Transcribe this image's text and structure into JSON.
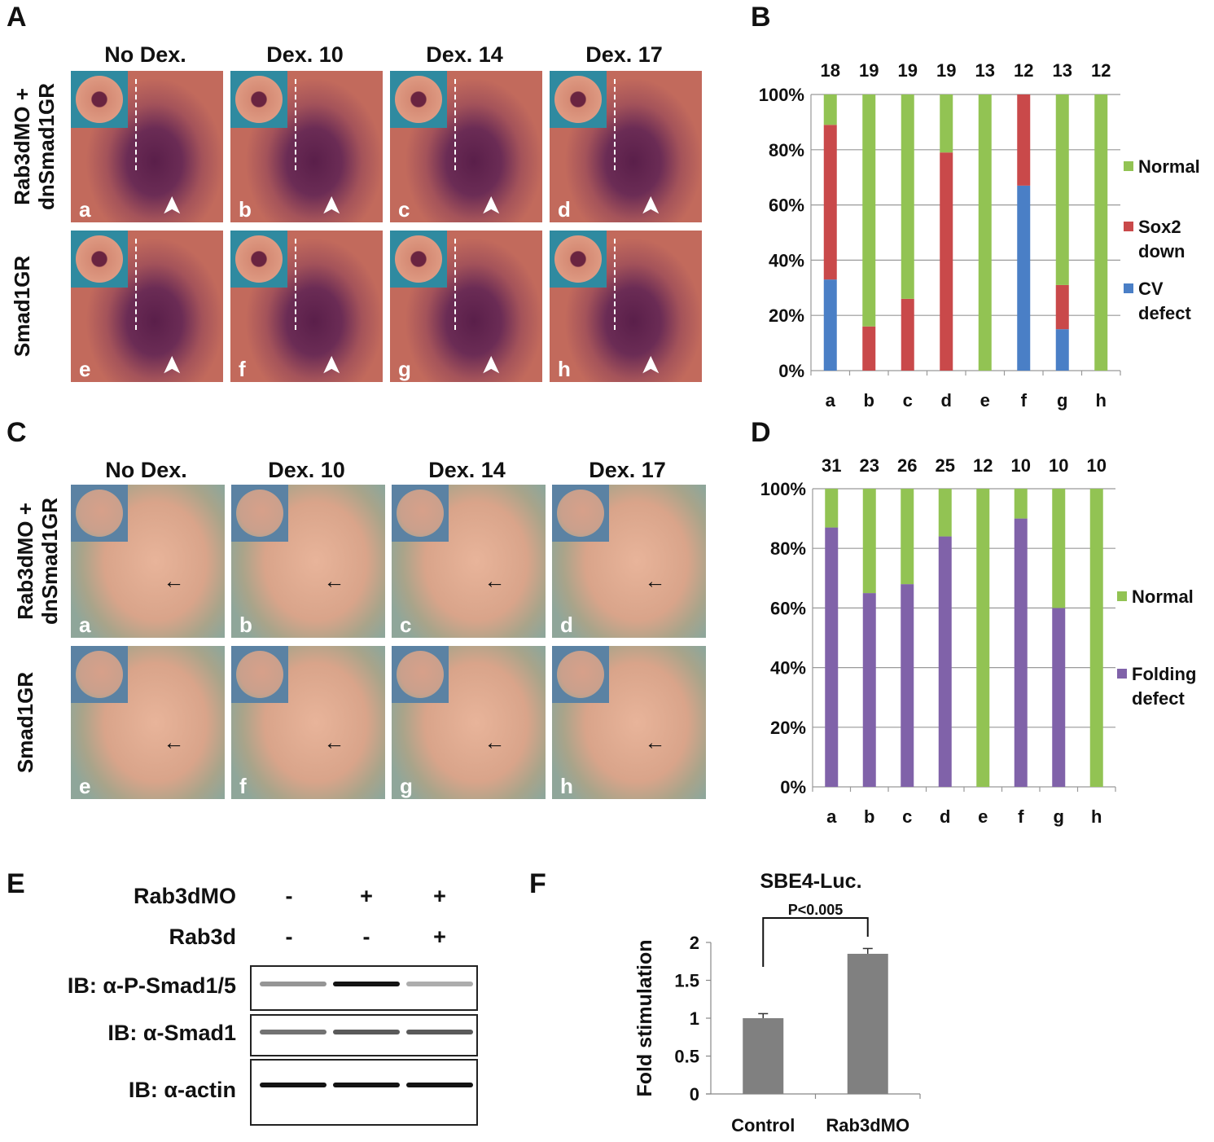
{
  "panels": {
    "A": {
      "letter": "A",
      "column_titles": [
        "No Dex.",
        "Dex. 10",
        "Dex. 14",
        "Dex. 17"
      ],
      "row_labels": [
        "Rab3dMO +\ndnSmad1GR",
        "Smad1GR"
      ],
      "image_labels": [
        "a",
        "b",
        "c",
        "d",
        "e",
        "f",
        "g",
        "h"
      ]
    },
    "B": {
      "letter": "B"
    },
    "C": {
      "letter": "C",
      "column_titles": [
        "No Dex.",
        "Dex. 10",
        "Dex. 14",
        "Dex. 17"
      ],
      "row_labels": [
        "Rab3dMO +\ndnSmad1GR",
        "Smad1GR"
      ],
      "image_labels": [
        "a",
        "b",
        "c",
        "d",
        "e",
        "f",
        "g",
        "h"
      ]
    },
    "D": {
      "letter": "D"
    },
    "E": {
      "letter": "E",
      "conditions": [
        {
          "label": "Rab3dMO",
          "values": [
            "-",
            "+",
            "+"
          ]
        },
        {
          "label": "Rab3d",
          "values": [
            "-",
            "-",
            "+"
          ]
        }
      ],
      "blots": [
        {
          "label": "IB: α-P-Smad1/5",
          "band_intensity": [
            0.45,
            1.0,
            0.35
          ]
        },
        {
          "label": "IB: α-Smad1",
          "band_intensity": [
            0.6,
            0.7,
            0.7
          ]
        },
        {
          "label": "IB: α-actin",
          "band_intensity": [
            1.0,
            1.0,
            1.0
          ]
        }
      ]
    },
    "F": {
      "letter": "F"
    }
  },
  "colors": {
    "normal": "#92c353",
    "sox2_down": "#c9494a",
    "cv_defect": "#4a7fc6",
    "folding_defect": "#8062a9",
    "bar_gray": "#808080",
    "grid": "#999999"
  },
  "chart_data": [
    {
      "id": "B",
      "type": "bar",
      "stacked": true,
      "categories": [
        "a",
        "b",
        "c",
        "d",
        "e",
        "f",
        "g",
        "h"
      ],
      "n_labels": [
        "18",
        "19",
        "19",
        "19",
        "13",
        "12",
        "13",
        "12"
      ],
      "series": [
        {
          "name": "CV defect",
          "values": [
            33,
            0,
            0,
            0,
            0,
            67,
            15,
            0
          ]
        },
        {
          "name": "Sox2 down",
          "values": [
            56,
            16,
            26,
            79,
            0,
            33,
            16,
            0
          ]
        },
        {
          "name": "Normal",
          "values": [
            11,
            84,
            74,
            21,
            100,
            0,
            69,
            100
          ]
        }
      ],
      "legend": [
        {
          "name": "Normal",
          "lines": [
            "Normal"
          ]
        },
        {
          "name": "Sox2 down",
          "lines": [
            "Sox2",
            "down"
          ]
        },
        {
          "name": "CV defect",
          "lines": [
            "CV",
            "defect"
          ]
        }
      ],
      "yticks": [
        "0%",
        "20%",
        "40%",
        "60%",
        "80%",
        "100%"
      ],
      "ylim": [
        0,
        100
      ],
      "grid": true,
      "legend_position": "right"
    },
    {
      "id": "D",
      "type": "bar",
      "stacked": true,
      "categories": [
        "a",
        "b",
        "c",
        "d",
        "e",
        "f",
        "g",
        "h"
      ],
      "n_labels": [
        "31",
        "23",
        "26",
        "25",
        "12",
        "10",
        "10",
        "10"
      ],
      "series": [
        {
          "name": "Folding defect",
          "values": [
            87,
            65,
            68,
            84,
            0,
            90,
            60,
            0
          ]
        },
        {
          "name": "Normal",
          "values": [
            13,
            35,
            32,
            16,
            100,
            10,
            40,
            100
          ]
        }
      ],
      "legend": [
        {
          "name": "Normal",
          "lines": [
            "Normal"
          ]
        },
        {
          "name": "Folding defect",
          "lines": [
            "Folding",
            "defect"
          ]
        }
      ],
      "yticks": [
        "0%",
        "20%",
        "40%",
        "60%",
        "80%",
        "100%"
      ],
      "ylim": [
        0,
        100
      ],
      "grid": true,
      "legend_position": "right"
    },
    {
      "id": "F",
      "type": "bar",
      "title": "SBE4-Luc.",
      "ylabel": "Fold stimulation",
      "categories": [
        "Control",
        "Rab3dMO"
      ],
      "values": [
        1.0,
        1.85
      ],
      "errors": [
        0.06,
        0.07
      ],
      "yticks": [
        "0",
        "0.5",
        "1",
        "1.5",
        "2"
      ],
      "ylim": [
        0,
        2
      ],
      "annotation": "P<0.005",
      "grid": false
    }
  ]
}
